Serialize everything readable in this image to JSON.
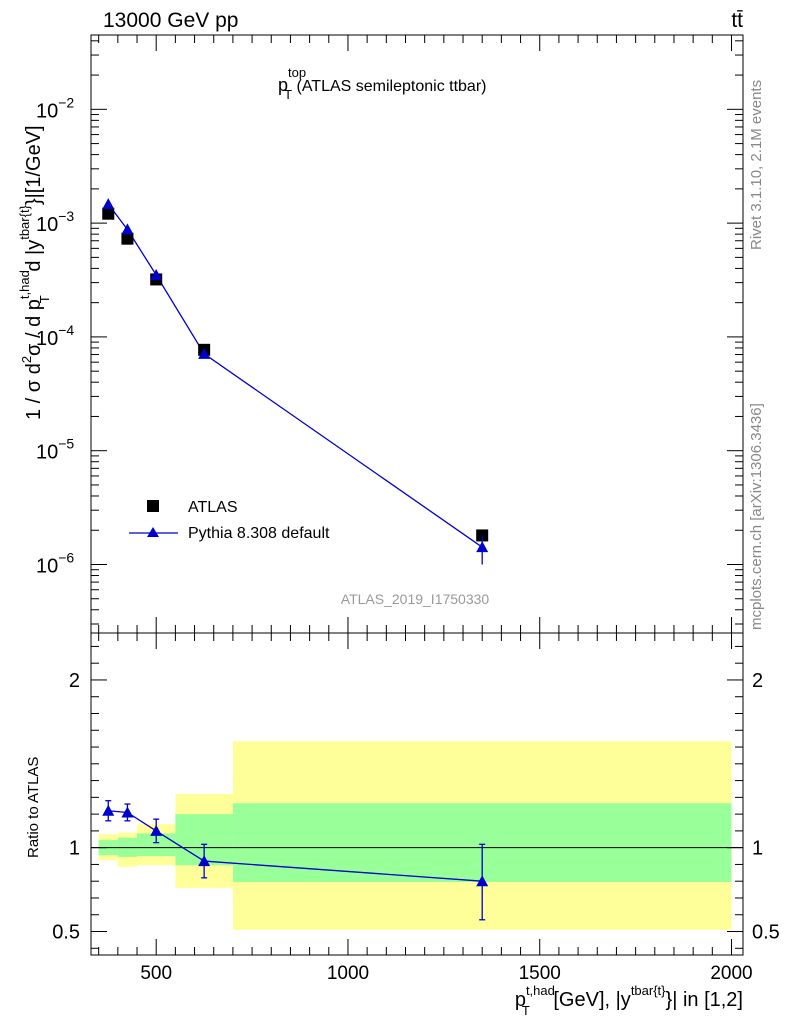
{
  "header": {
    "energy_label": "13000 GeV pp",
    "process_label": "tt̄"
  },
  "side_labels": {
    "rivet": "Rivet 3.1.10,  2.1M events",
    "mcplots": "mcplots.cern.ch [arXiv:1306.3436]"
  },
  "chart_data": [
    {
      "type": "scatter",
      "panel": "main",
      "title": {
        "main": "p",
        "sub": "T",
        "sup": "top",
        "rest": " (ATLAS semileptonic ttbar)"
      },
      "watermark": "ATLAS_2019_I1750330",
      "yscale": "log",
      "ylim": [
        2.5e-07,
        0.045
      ],
      "xlim": [
        330,
        2030
      ],
      "ylabel": {
        "p1": "1 / σ d",
        "p1_sup": "2",
        "p2": "σ /  d p",
        "p2_sub": "T",
        "p2_sup": "t,had",
        "p3": " d |y",
        "p3_sup": "tbar{t}",
        "p4": "}|[1/GeV]"
      },
      "yticks": [
        {
          "value": 1e-06,
          "base": "10",
          "exp": "−6"
        },
        {
          "value": 1e-05,
          "base": "10",
          "exp": "−5"
        },
        {
          "value": 0.0001,
          "base": "10",
          "exp": "−4"
        },
        {
          "value": 0.001,
          "base": "10",
          "exp": "−3"
        },
        {
          "value": 0.01,
          "base": "10",
          "exp": "−2"
        }
      ],
      "legend": {
        "placement": "bottom-left",
        "entries": [
          "ATLAS",
          "Pythia 8.308 default"
        ]
      },
      "series": [
        {
          "name": "ATLAS",
          "marker": "square",
          "color": "#000000",
          "x": [
            375,
            425,
            500,
            625,
            1350
          ],
          "y": [
            0.00121,
            0.00073,
            0.00032,
            7.7e-05,
            1.8e-06
          ]
        },
        {
          "name": "Pythia 8.308 default",
          "marker": "triangle",
          "color": "#0000cc",
          "x": [
            375,
            425,
            500,
            625,
            1350
          ],
          "y": [
            0.00147,
            0.00088,
            0.00035,
            7.1e-05,
            1.42e-06
          ],
          "yerr_low": [
            0.00146,
            0.00087,
            0.000343,
            6.6e-05,
            1e-06
          ],
          "yerr_high": [
            0.00148,
            0.00089,
            0.000357,
            7.6e-05,
            1.8e-06
          ]
        }
      ]
    },
    {
      "type": "scatter",
      "panel": "ratio",
      "ylabel": "Ratio to ATLAS",
      "ylim": [
        0.36,
        2.28
      ],
      "xlim": [
        330,
        2030
      ],
      "yticks": [
        0.5,
        1,
        2
      ],
      "ytick_labels": [
        "0.5",
        "1",
        "2"
      ],
      "xticks": [
        500,
        1000,
        1500,
        2000
      ],
      "xtick_labels": [
        "500",
        "1000",
        "1500",
        "2000"
      ],
      "xlabel": {
        "p1": "p",
        "p1_sub": "T",
        "p1_sup": "t,had",
        "p2": " [GeV], |y",
        "p2_sup": "tbar{t}",
        "p3": "}| in [1,2]"
      },
      "bands": [
        {
          "x0": 350,
          "x1": 400,
          "green": [
            0.955,
            1.045
          ],
          "yellow": [
            0.925,
            1.08
          ]
        },
        {
          "x0": 400,
          "x1": 450,
          "green": [
            0.945,
            1.06
          ],
          "yellow": [
            0.885,
            1.09
          ]
        },
        {
          "x0": 450,
          "x1": 550,
          "green": [
            0.95,
            1.085
          ],
          "yellow": [
            0.895,
            1.14
          ]
        },
        {
          "x0": 550,
          "x1": 700,
          "green": [
            0.895,
            1.2
          ],
          "yellow": [
            0.76,
            1.32
          ]
        },
        {
          "x0": 700,
          "x1": 2000,
          "green": [
            0.795,
            1.265
          ],
          "yellow": [
            0.51,
            1.635
          ]
        }
      ],
      "series": [
        {
          "name": "Pythia 8.308 default",
          "marker": "triangle",
          "color": "#0000cc",
          "x": [
            375,
            425,
            500,
            625,
            1350
          ],
          "y": [
            1.22,
            1.21,
            1.1,
            0.92,
            0.8
          ],
          "yerr_low": [
            1.16,
            1.16,
            1.03,
            0.82,
            0.57
          ],
          "yerr_high": [
            1.28,
            1.26,
            1.17,
            1.02,
            1.02
          ]
        }
      ]
    }
  ]
}
